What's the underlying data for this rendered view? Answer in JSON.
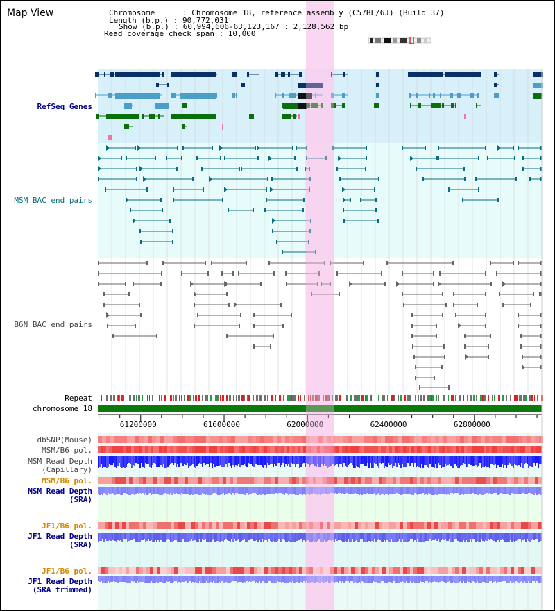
{
  "window": {
    "title": "Map View"
  },
  "info": {
    "chromosome": "Chromosome      : Chromosome 18, reference assembly (C57BL/6J) (Build 37)",
    "length": "Length (b.p.) : 90,772,031",
    "show": "Show (b.p.) : 60,994,606-63,123,167 : 2,128,562 bp",
    "coverage": "Read coverage check span : 10,000"
  },
  "tracks": {
    "refseq": "RefSeq Genes",
    "msm_bac": "MSM BAC end pairs",
    "b6n_bac": "B6N BAC end pairs",
    "repeat": "Repeat",
    "chromosome": "chromosome 18",
    "dbsnp": "dbSNP(Mouse)",
    "msm_b6_pol_1": "MSM/B6 pol.",
    "msm_depth_cap_1": "MSM Read Depth",
    "msm_depth_cap_2": "(Capillary)",
    "msm_b6_pol_2": "MSM/B6 pol.",
    "msm_depth_sra_1": "MSM Read Depth",
    "msm_depth_sra_2": "(SRA)",
    "jf1_b6_pol_1": "JF1/B6 pol.",
    "jf1_depth_1": "JF1 Read Depth",
    "jf1_depth_2": "(SRA)",
    "jf1_b6_pol_2": "JF1/B6 pol.",
    "jf1_trim_1": "JF1 Read Depth",
    "jf1_trim_2": "(SRA trimmed)"
  },
  "axis": {
    "ticks": [
      "61200000",
      "61600000",
      "62000000",
      "62400000",
      "62800000"
    ]
  },
  "colors": {
    "refseq_bg": "#d8f0fa",
    "bac_bg": "#e8fbfb",
    "highlight": "#f8d0f0",
    "gene_navy": "#0a2e66",
    "gene_light": "#4a9ec8",
    "gene_green": "#0a6e0a",
    "bac_teal": "#0a6e82",
    "bac_gray": "#666666",
    "chrom_green": "#0a7a0a",
    "snp_red": "#f07070",
    "depth_blue": "#1a1aff",
    "depth_periwinkle": "#8a8aff",
    "depth_bg": "#eaffea"
  }
}
